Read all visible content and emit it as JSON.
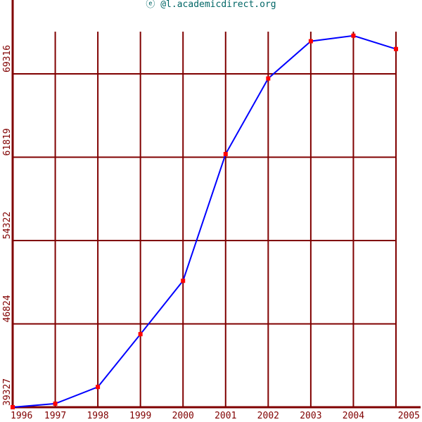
{
  "watermark": "ⓔ @l.academicdirect.org",
  "colors": {
    "grid": "#800000",
    "axis": "#800000",
    "line": "#0000ff",
    "marker": "#ff0000",
    "watermark": "#006666"
  },
  "chart_data": {
    "type": "line",
    "title": "",
    "xlabel": "",
    "ylabel": "",
    "x": [
      "1996",
      "1997",
      "1998",
      "1999",
      "2000",
      "2001",
      "2002",
      "2003",
      "2004",
      "2005"
    ],
    "series": [
      {
        "values": [
          39327,
          39650,
          41150,
          45900,
          50700,
          62100,
          68900,
          72250,
          72750,
          71550
        ]
      }
    ],
    "y_ticks": [
      "39327",
      "46824",
      "54322",
      "61819",
      "69316"
    ],
    "ylim": [
      39327,
      73500
    ],
    "grid": true,
    "legend": "none"
  }
}
